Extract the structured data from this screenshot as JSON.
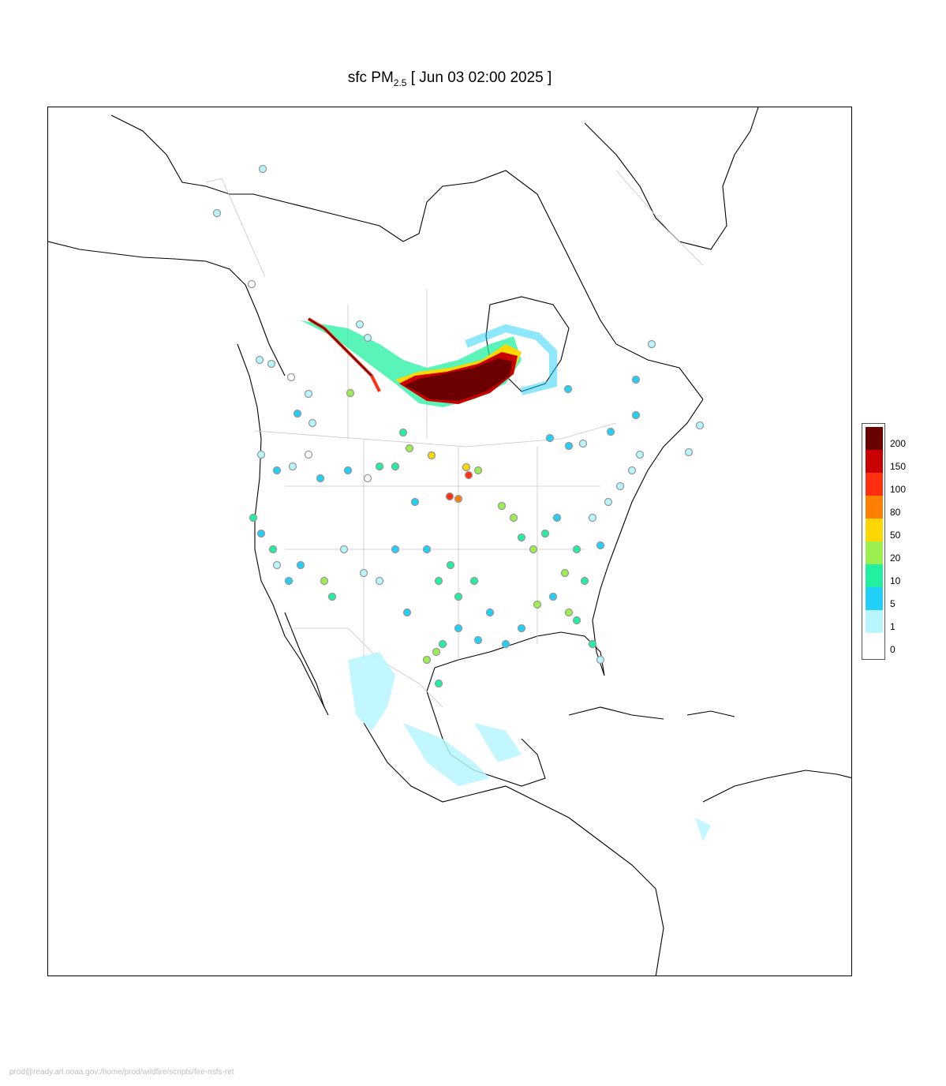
{
  "title": {
    "prefix": "sfc PM",
    "subscript": "2.5",
    "suffix": " [ Jun 03 02:00 2025 ]"
  },
  "legend": {
    "colors": [
      "#6b0000",
      "#c80000",
      "#ff3010",
      "#ff8000",
      "#ffd700",
      "#9bf050",
      "#20f0a0",
      "#20d0f8",
      "#b8f6ff",
      "#ffffff"
    ],
    "labels": [
      "200",
      "150",
      "100",
      "80",
      "50",
      "20",
      "10",
      "5",
      "1",
      "0"
    ]
  },
  "footer": "prod@ready.arl.noaa.gov:/home/prod/wildfire/scripts/fire-nsfs-nrt"
}
